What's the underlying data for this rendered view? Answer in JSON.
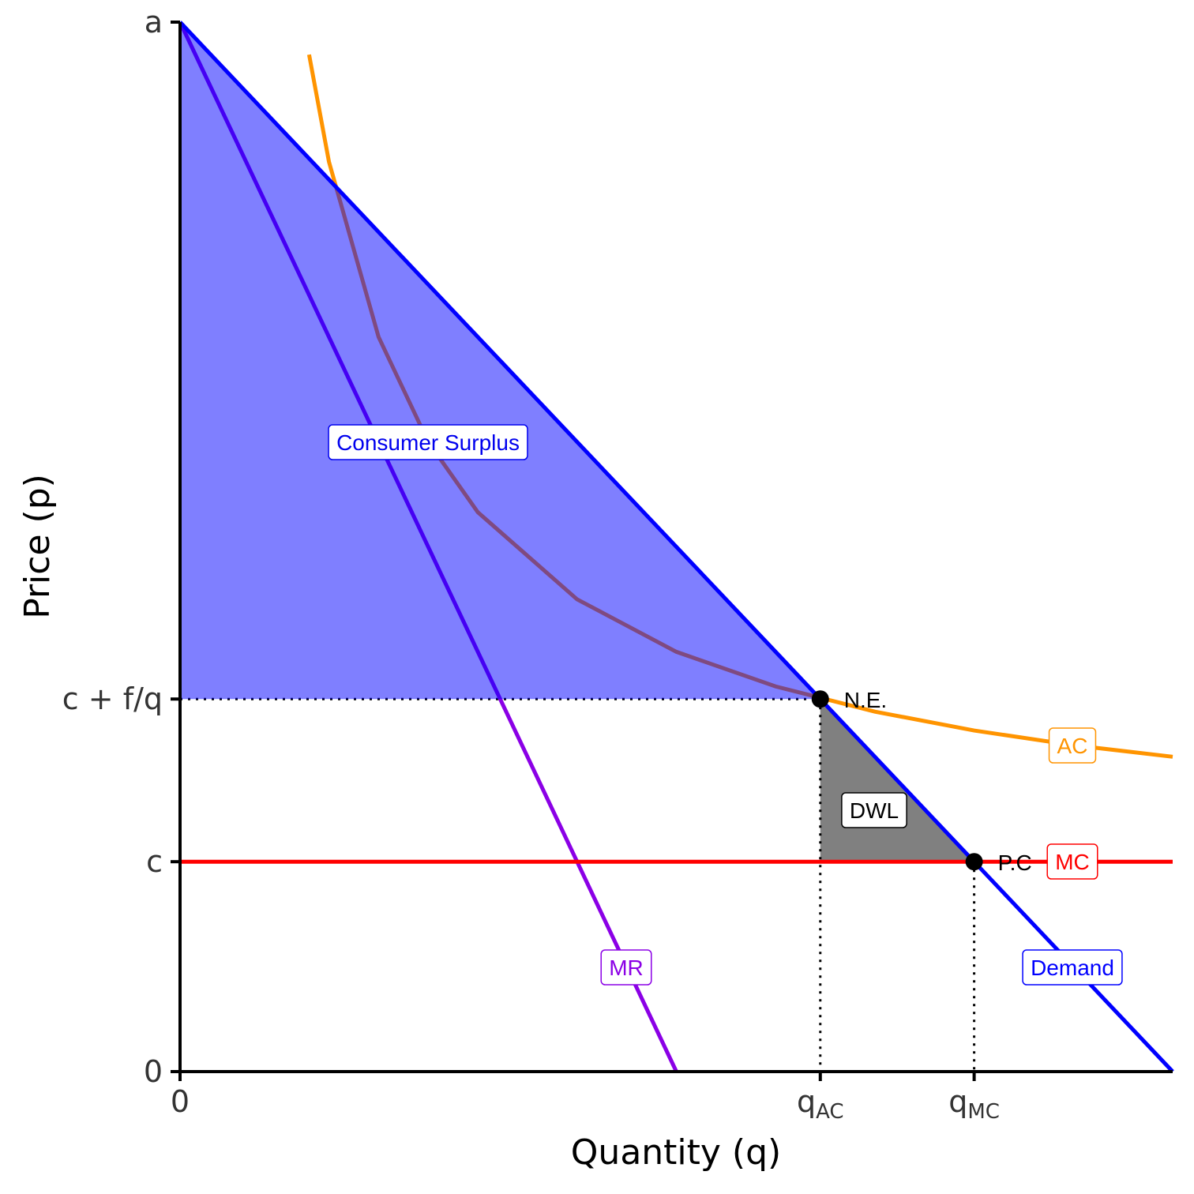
{
  "chart_data": {
    "type": "line",
    "x_label": "Quantity (q)",
    "y_label": "Price (p)",
    "xlim": [
      0,
      10
    ],
    "ylim": [
      0,
      10
    ],
    "xticks": [
      0,
      {
        "value": 6.45,
        "label": "qAC"
      },
      {
        "value": 8,
        "label": "qMC"
      }
    ],
    "yticks": [
      0,
      {
        "value": 2,
        "label": "c"
      },
      {
        "value": 3.55,
        "label": "c + f/q"
      },
      {
        "value": 10,
        "label": "a"
      }
    ],
    "series": [
      {
        "name": "Demand",
        "color": "#0000ff",
        "x": [
          0,
          10
        ],
        "values": [
          10,
          0
        ]
      },
      {
        "name": "MR",
        "color": "#8b00e6",
        "x": [
          0,
          5
        ],
        "values": [
          10,
          0
        ]
      },
      {
        "name": "MC",
        "color": "#ff0000",
        "x": [
          0,
          10
        ],
        "values": [
          2,
          2
        ]
      },
      {
        "name": "AC",
        "color": "#ff9400",
        "x": [
          1.3,
          1.5,
          2,
          2.5,
          3,
          4,
          5,
          6,
          7,
          8,
          9,
          10
        ],
        "values": [
          9.69,
          8.67,
          7,
          6,
          5.33,
          4.5,
          4,
          3.67,
          3.43,
          3.25,
          3.11,
          3
        ]
      }
    ],
    "areas": [
      {
        "name": "Consumer Surplus",
        "color": "#0000ff",
        "text_color": "#0000ee",
        "x": [
          0,
          6.45,
          0
        ],
        "values": [
          10,
          3.55,
          3.55
        ]
      },
      {
        "name": "DWL",
        "color": "#808080",
        "text_color": "#000000",
        "x": [
          6.45,
          6.45,
          8
        ],
        "values": [
          3.55,
          2,
          2
        ]
      }
    ],
    "points": [
      {
        "name": "N.E.",
        "x": 6.45,
        "y": 3.55
      },
      {
        "name": "P.C",
        "x": 8,
        "y": 2
      }
    ]
  }
}
